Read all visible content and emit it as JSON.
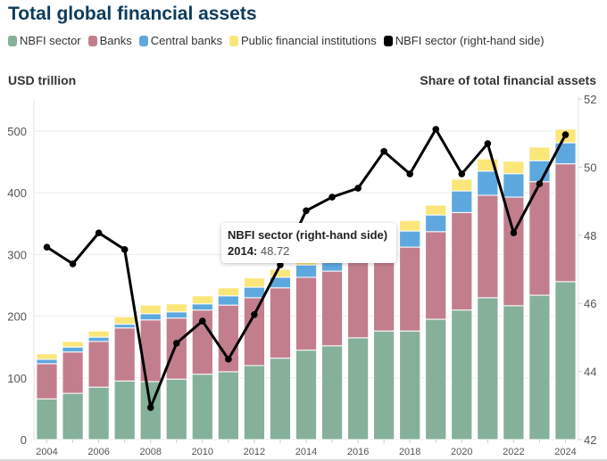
{
  "chart_data": {
    "type": "bar",
    "title": "Total global financial assets",
    "ylabel": "USD trillion",
    "y2label": "Share of total financial assets",
    "xlabel": "",
    "ylim": [
      0,
      550
    ],
    "y2lim": [
      42,
      52
    ],
    "yticks": [
      0,
      100,
      200,
      300,
      400,
      500
    ],
    "y2ticks": [
      42,
      44,
      46,
      48,
      50,
      52
    ],
    "xtick_labels": [
      "2004",
      "2006",
      "2008",
      "2010",
      "2012",
      "2014",
      "2016",
      "2018",
      "2020",
      "2022",
      "2024"
    ],
    "grid": true,
    "stacked": true,
    "legend_position": "top-left",
    "categories": [
      "2004",
      "2005",
      "2006",
      "2007",
      "2008",
      "2009",
      "2010",
      "2011",
      "2012",
      "2013",
      "2014",
      "2015",
      "2016",
      "2017",
      "2018",
      "2019",
      "2020",
      "2021",
      "2022",
      "2023",
      "2024"
    ],
    "series": [
      {
        "name": "NBFI sector",
        "type": "bar",
        "axis": "left",
        "color": "#85b09a",
        "values": [
          66,
          75,
          85,
          95,
          94,
          98,
          106,
          110,
          120,
          132,
          145,
          152,
          165,
          176,
          176,
          195,
          210,
          230,
          217,
          234,
          256
        ]
      },
      {
        "name": "Banks",
        "type": "bar",
        "axis": "left",
        "color": "#c37e8e",
        "values": [
          57,
          67,
          74,
          86,
          100,
          99,
          104,
          108,
          110,
          114,
          118,
          121,
          124,
          136,
          136,
          142,
          158,
          166,
          176,
          184,
          191
        ]
      },
      {
        "name": "Central banks",
        "type": "bar",
        "axis": "left",
        "color": "#5ea8e0",
        "values": [
          7,
          8,
          7,
          6,
          10,
          10,
          10,
          15,
          17,
          17,
          20,
          20,
          22,
          22,
          26,
          27,
          35,
          39,
          38,
          34,
          34
        ]
      },
      {
        "name": "Public financial institutions",
        "type": "bar",
        "axis": "left",
        "color": "#fbe67a",
        "values": [
          9,
          9,
          10,
          12,
          14,
          13,
          13,
          13,
          15,
          13,
          15,
          15,
          14,
          16,
          17,
          16,
          19,
          20,
          20,
          22,
          22
        ]
      },
      {
        "name": "NBFI sector (right-hand side)",
        "type": "line",
        "axis": "right",
        "color": "#000000",
        "values": [
          47.65,
          47.16,
          48.07,
          47.58,
          42.94,
          44.83,
          45.48,
          44.36,
          45.67,
          47.13,
          48.72,
          49.12,
          49.38,
          50.46,
          49.8,
          51.11,
          49.8,
          50.69,
          48.07,
          49.51,
          50.95
        ]
      }
    ],
    "tooltip": {
      "series": "NBFI sector (right-hand side)",
      "year": "2014:",
      "value": "48.72"
    }
  },
  "legend": [
    {
      "label": "NBFI sector",
      "color": "#85b09a"
    },
    {
      "label": "Banks",
      "color": "#c37e8e"
    },
    {
      "label": "Central banks",
      "color": "#5ea8e0"
    },
    {
      "label": "Public financial institutions",
      "color": "#fbe67a"
    },
    {
      "label": "NBFI sector (right-hand side)",
      "color": "#000000"
    }
  ]
}
